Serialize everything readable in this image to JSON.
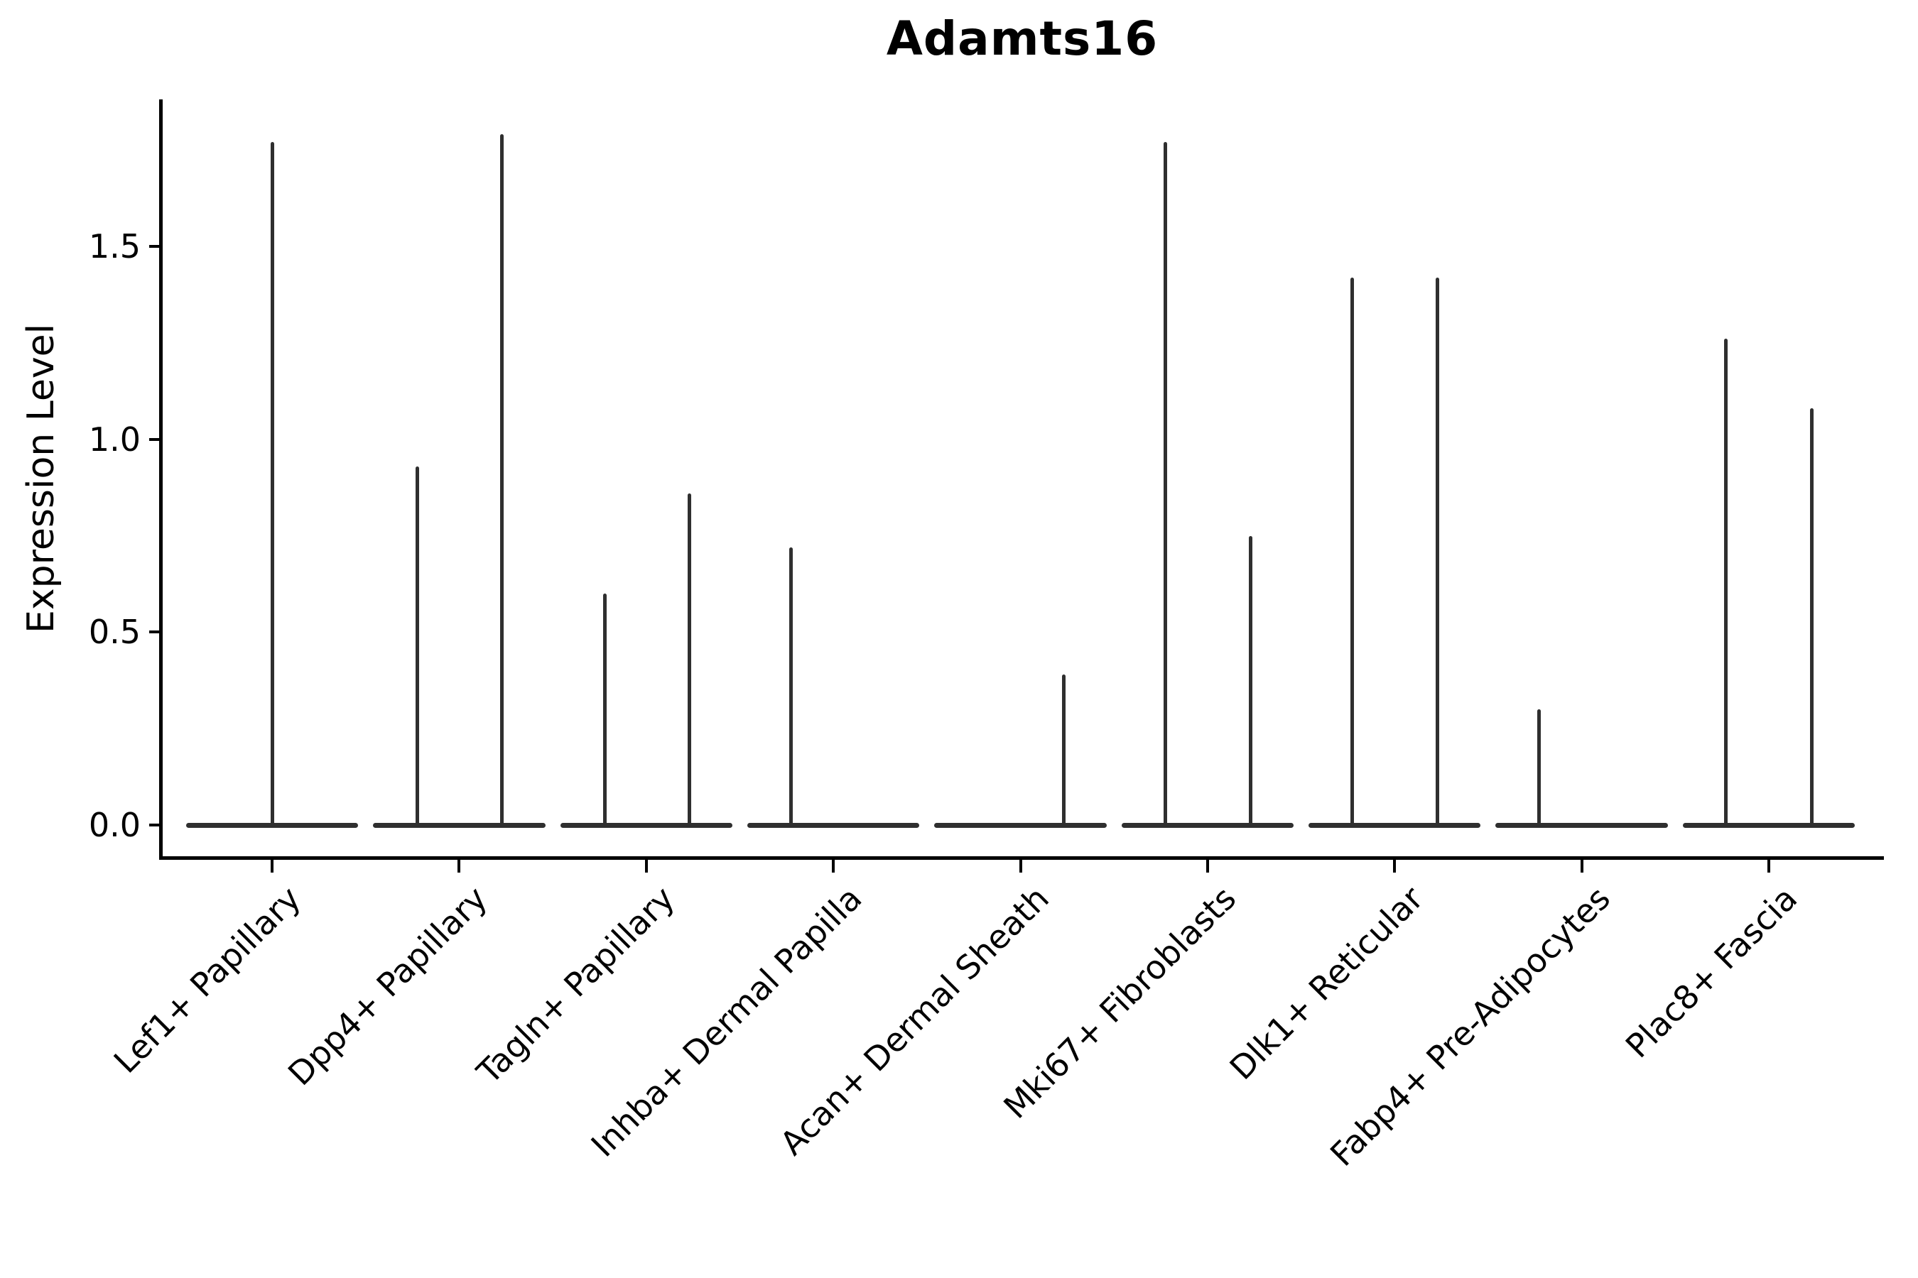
{
  "title": "Adamts16",
  "ylabel": "Expression Level",
  "chart_data": {
    "type": "violin",
    "title": "Adamts16",
    "xlabel": "",
    "ylabel": "Expression Level",
    "ylim": [
      -0.085,
      1.88
    ],
    "yticks": [
      0.0,
      0.5,
      1.0,
      1.5
    ],
    "ytick_labels": [
      "0.0",
      "0.5",
      "1.0",
      "1.5"
    ],
    "grid": false,
    "legend": "none",
    "categories": [
      "Lef1+ Papillary",
      "Dpp4+ Papillary",
      "Tagln+ Papillary",
      "Inhba+ Dermal Papilla",
      "Acan+ Dermal Sheath",
      "Mki67+ Fibroblasts",
      "Dlk1+ Reticular",
      "Fabp4+ Pre-Adipocytes",
      "Plac8+ Fascia"
    ],
    "violins": [
      {
        "category": "Lef1+ Papillary",
        "baseline_at": 0.0,
        "spikes": [
          {
            "offset": 0.0,
            "max": 1.77
          }
        ]
      },
      {
        "category": "Dpp4+ Papillary",
        "baseline_at": 0.0,
        "spikes": [
          {
            "offset": -0.225,
            "max": 0.93
          },
          {
            "offset": 0.23,
            "max": 1.79
          }
        ]
      },
      {
        "category": "Tagln+ Papillary",
        "baseline_at": 0.0,
        "spikes": [
          {
            "offset": -0.22,
            "max": 0.6
          },
          {
            "offset": 0.23,
            "max": 0.86
          }
        ]
      },
      {
        "category": "Inhba+ Dermal Papilla",
        "baseline_at": 0.0,
        "spikes": [
          {
            "offset": -0.225,
            "max": 0.72
          }
        ]
      },
      {
        "category": "Acan+ Dermal Sheath",
        "baseline_at": 0.0,
        "spikes": [
          {
            "offset": 0.23,
            "max": 0.39
          }
        ]
      },
      {
        "category": "Mki67+ Fibroblasts",
        "baseline_at": 0.0,
        "spikes": [
          {
            "offset": -0.225,
            "max": 1.77
          },
          {
            "offset": 0.23,
            "max": 0.75
          }
        ]
      },
      {
        "category": "Dlk1+ Reticular",
        "baseline_at": 0.0,
        "spikes": [
          {
            "offset": -0.225,
            "max": 1.42
          },
          {
            "offset": 0.23,
            "max": 1.42
          }
        ]
      },
      {
        "category": "Fabp4+ Pre-Adipocytes",
        "baseline_at": 0.0,
        "spikes": [
          {
            "offset": -0.23,
            "max": 0.3
          }
        ]
      },
      {
        "category": "Plac8+ Fascia",
        "baseline_at": 0.0,
        "spikes": [
          {
            "offset": -0.23,
            "max": 1.26
          },
          {
            "offset": 0.23,
            "max": 1.08
          }
        ]
      }
    ],
    "baseline_halfwidth": 0.46,
    "colors": {
      "violin": "#2f2f2f",
      "axis": "#000000",
      "background": "#ffffff",
      "text": "#000000"
    }
  }
}
